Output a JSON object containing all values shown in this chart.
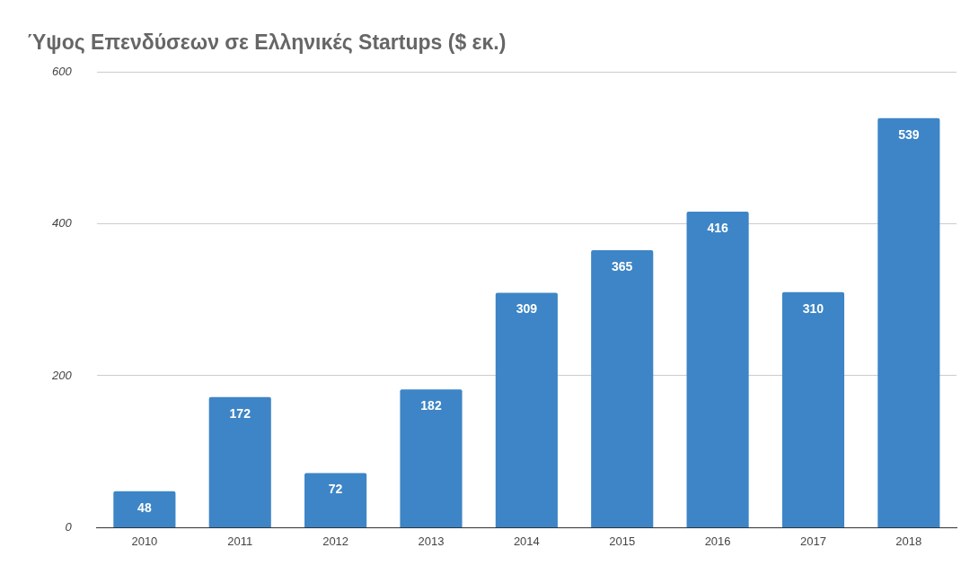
{
  "chart_data": {
    "type": "bar",
    "title": "Ύψος Επενδύσεων σε Ελληνικές Startups ($ εκ.)",
    "categories": [
      "2010",
      "2011",
      "2012",
      "2013",
      "2014",
      "2015",
      "2016",
      "2017",
      "2018"
    ],
    "values": [
      48,
      172,
      72,
      182,
      309,
      365,
      416,
      310,
      539
    ],
    "color": "#3d85c6",
    "ylim": [
      0,
      600
    ],
    "yticks": [
      0,
      200,
      400,
      600
    ],
    "grid": "y",
    "data_labels": true,
    "legend": false
  }
}
